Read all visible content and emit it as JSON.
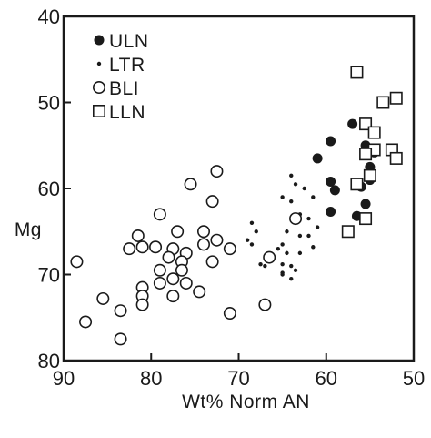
{
  "chart_data": {
    "type": "scatter",
    "title": "",
    "xlabel": "Wt% Norm AN",
    "ylabel": "Mg",
    "xlim": [
      90,
      50
    ],
    "ylim": [
      40,
      80
    ],
    "x_reversed": true,
    "y_reversed": true,
    "xticks": [
      90,
      80,
      70,
      60,
      50
    ],
    "yticks": [
      40,
      50,
      60,
      70,
      80
    ],
    "grid": false,
    "legend_position": "top-left",
    "series": [
      {
        "name": "ULN",
        "marker": "filled-circle-large",
        "color": "#1a1a1a",
        "points": [
          [
            57.0,
            52.5
          ],
          [
            55.5,
            55.0
          ],
          [
            54.5,
            55.8
          ],
          [
            59.5,
            54.5
          ],
          [
            61.0,
            56.5
          ],
          [
            55.0,
            57.5
          ],
          [
            55.0,
            59.0
          ],
          [
            56.0,
            59.8
          ],
          [
            59.5,
            59.2
          ],
          [
            59.0,
            60.2
          ],
          [
            55.5,
            61.8
          ],
          [
            59.5,
            62.7
          ],
          [
            56.5,
            63.2
          ]
        ]
      },
      {
        "name": "LTR",
        "marker": "filled-circle-small",
        "color": "#1a1a1a",
        "points": [
          [
            64.0,
            58.5
          ],
          [
            63.5,
            59.5
          ],
          [
            65.0,
            61.0
          ],
          [
            62.5,
            60.0
          ],
          [
            64.0,
            61.5
          ],
          [
            61.5,
            61.0
          ],
          [
            63.0,
            63.0
          ],
          [
            62.0,
            63.5
          ],
          [
            61.0,
            64.5
          ],
          [
            62.0,
            65.5
          ],
          [
            63.0,
            65.5
          ],
          [
            64.5,
            65.0
          ],
          [
            65.0,
            66.5
          ],
          [
            61.5,
            66.8
          ],
          [
            63.0,
            67.5
          ],
          [
            64.5,
            67.5
          ],
          [
            65.5,
            67.0
          ],
          [
            66.5,
            68.5
          ],
          [
            67.0,
            69.0
          ],
          [
            67.5,
            68.8
          ],
          [
            65.0,
            68.8
          ],
          [
            64.0,
            69.0
          ],
          [
            63.5,
            69.5
          ],
          [
            65.0,
            69.8
          ],
          [
            64.0,
            70.5
          ],
          [
            65.0,
            70.0
          ],
          [
            68.5,
            64.0
          ],
          [
            68.0,
            65.0
          ],
          [
            69.0,
            66.0
          ],
          [
            68.5,
            66.5
          ]
        ]
      },
      {
        "name": "BLI",
        "marker": "open-circle",
        "color": "#1a1a1a",
        "points": [
          [
            72.5,
            58.0
          ],
          [
            75.5,
            59.5
          ],
          [
            73.0,
            61.5
          ],
          [
            79.0,
            63.0
          ],
          [
            81.5,
            65.5
          ],
          [
            77.0,
            65.0
          ],
          [
            74.0,
            65.0
          ],
          [
            72.5,
            66.0
          ],
          [
            82.5,
            67.0
          ],
          [
            81.0,
            66.8
          ],
          [
            79.5,
            66.8
          ],
          [
            77.5,
            67.0
          ],
          [
            76.0,
            67.5
          ],
          [
            74.0,
            66.5
          ],
          [
            71.0,
            67.0
          ],
          [
            78.0,
            68.0
          ],
          [
            76.5,
            68.5
          ],
          [
            73.0,
            68.5
          ],
          [
            88.5,
            68.5
          ],
          [
            79.0,
            69.5
          ],
          [
            76.5,
            69.5
          ],
          [
            77.5,
            70.5
          ],
          [
            79.0,
            71.0
          ],
          [
            76.0,
            71.0
          ],
          [
            81.0,
            71.5
          ],
          [
            74.5,
            72.0
          ],
          [
            77.5,
            72.5
          ],
          [
            81.0,
            72.5
          ],
          [
            85.5,
            72.8
          ],
          [
            81.0,
            73.5
          ],
          [
            83.5,
            74.2
          ],
          [
            71.0,
            74.5
          ],
          [
            87.5,
            75.5
          ],
          [
            83.5,
            77.5
          ],
          [
            67.0,
            73.5
          ],
          [
            66.5,
            68.0
          ],
          [
            63.5,
            63.5
          ]
        ]
      },
      {
        "name": "LLN",
        "marker": "open-square",
        "color": "#1a1a1a",
        "points": [
          [
            56.5,
            46.5
          ],
          [
            52.0,
            49.5
          ],
          [
            53.5,
            50.0
          ],
          [
            55.5,
            52.5
          ],
          [
            54.5,
            53.5
          ],
          [
            54.5,
            55.5
          ],
          [
            55.5,
            56.0
          ],
          [
            52.5,
            55.5
          ],
          [
            52.0,
            56.5
          ],
          [
            55.0,
            58.5
          ],
          [
            56.5,
            59.5
          ],
          [
            55.5,
            63.5
          ],
          [
            57.5,
            65.0
          ]
        ]
      }
    ]
  }
}
